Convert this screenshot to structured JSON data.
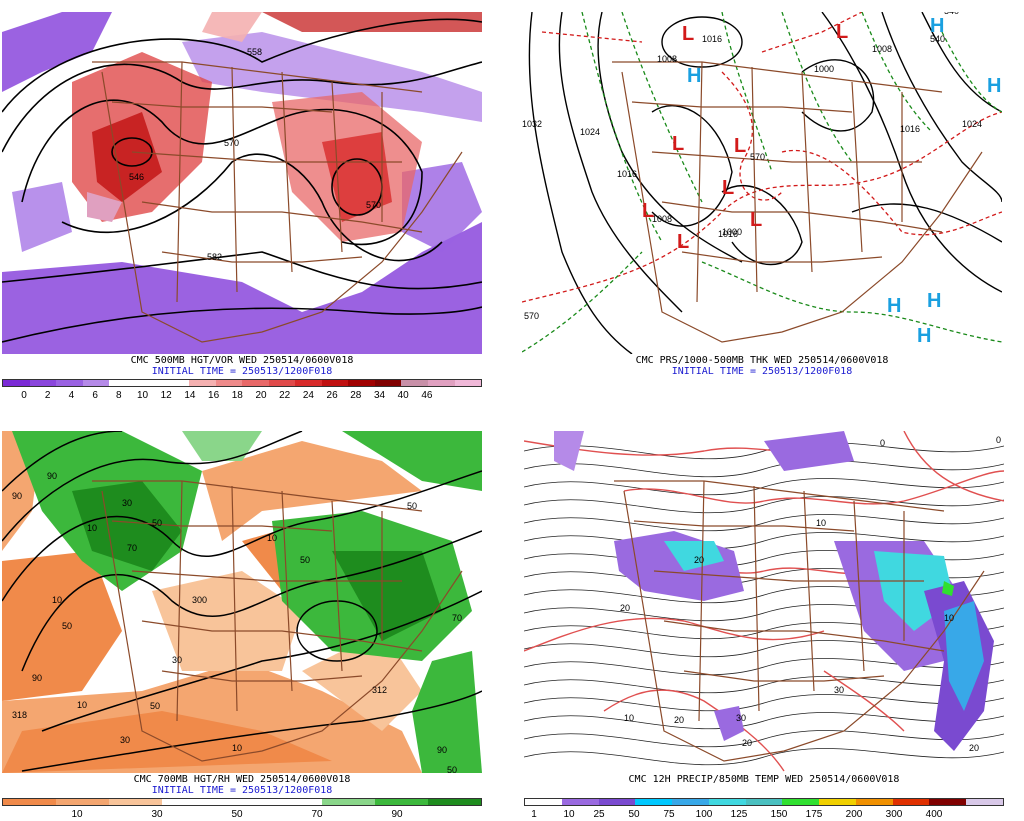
{
  "panels": {
    "p1": {
      "title": "CMC 500MB HGT/VOR WED 250514/0600V018",
      "init": "INITIAL TIME = 250513/1200F018",
      "contour_labels": [
        "558",
        "570",
        "546",
        "570",
        "582"
      ],
      "colorbar": {
        "colors": [
          "#7b2ad6",
          "#8a46dc",
          "#9a62e2",
          "#b58ae8",
          "#ffffff",
          "#ffffff",
          "#ffffff",
          "#f4b0b0",
          "#ee8a8a",
          "#e86868",
          "#e04a4a",
          "#d82a2a",
          "#c01010",
          "#a00000",
          "#800000",
          "#c890a8",
          "#e0a0c0",
          "#f0b8d8"
        ],
        "ticks": [
          "0",
          "2",
          "4",
          "6",
          "8",
          "10",
          "12",
          "14",
          "16",
          "18",
          "20",
          "22",
          "24",
          "26",
          "28",
          "34",
          "40",
          "46"
        ]
      }
    },
    "p2": {
      "title": "CMC PRS/1000-500MB THK WED 250514/0600V018",
      "init": "INITIAL TIME = 250513/1200F018",
      "isobar_labels": [
        "1032",
        "1024",
        "1016",
        "1008",
        "1016",
        "1008",
        "1000",
        "1000",
        "1008",
        "1016",
        "1024",
        "1016"
      ],
      "thickness_labels": [
        "570",
        "570",
        "540",
        "540"
      ],
      "highs": [
        "H",
        "H",
        "H",
        "H",
        "H",
        "H"
      ],
      "lows": [
        "L",
        "L",
        "L",
        "L",
        "L",
        "L",
        "L",
        "L"
      ]
    },
    "p3": {
      "title": "CMC 700MB HGT/RH WED 250514/0600V018",
      "init": "INITIAL TIME = 250513/1200F018",
      "labels": [
        "90",
        "90",
        "10",
        "30",
        "50",
        "70",
        "10",
        "50",
        "300",
        "50",
        "10",
        "50",
        "70",
        "90",
        "30",
        "312",
        "318",
        "10",
        "50",
        "30",
        "10",
        "90",
        "50"
      ],
      "colorbar": {
        "colors": [
          "#f08a4a",
          "#f4a670",
          "#f8c49a",
          "#ffffff",
          "#ffffff",
          "#ffffff",
          "#8ad68a",
          "#3cb83c",
          "#1e8c1e"
        ],
        "ticks": [
          "10",
          "30",
          "50",
          "70",
          "90"
        ]
      }
    },
    "p4": {
      "title": "CMC 12H PRECIP/850MB TEMP WED 250514/0600V018",
      "init": "",
      "labels": [
        "0",
        "20",
        "20",
        "10",
        "20",
        "30",
        "30",
        "20",
        "10",
        "0",
        "20",
        "10"
      ],
      "colorbar": {
        "colors": [
          "#ffffff",
          "#9a6ae0",
          "#7a4ad0",
          "#00c8ff",
          "#38a8e8",
          "#40d8e0",
          "#4ac0c0",
          "#30e030",
          "#f0d000",
          "#f09000",
          "#e03000",
          "#800000",
          "#d8c8e8"
        ],
        "ticks": [
          "1",
          "10",
          "25",
          "50",
          "75",
          "100",
          "125",
          "150",
          "175",
          "200",
          "300",
          "400"
        ]
      }
    }
  }
}
